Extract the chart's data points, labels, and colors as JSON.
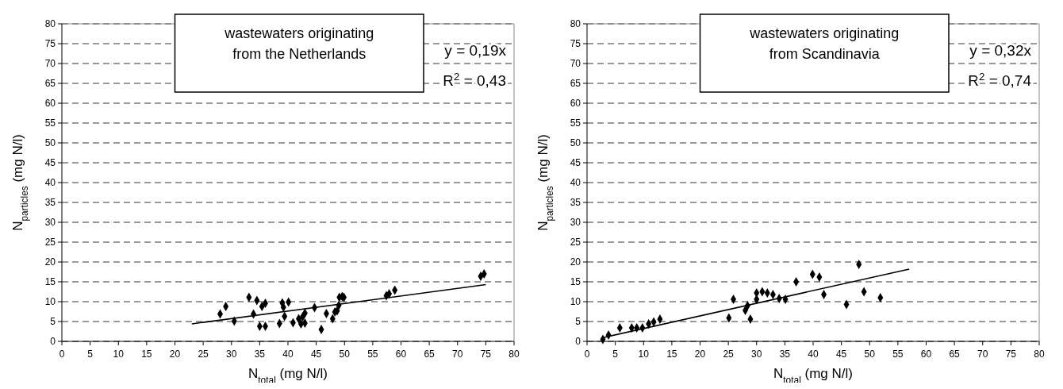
{
  "chart_data": [
    {
      "type": "scatter",
      "title": "wastewaters originating from the Netherlands",
      "xlabel": "N$_{total}$ (mg N/l)",
      "ylabel": "N$_{particles}$ (mg N/l)",
      "annotations": [
        "y = 0,19x",
        "R$^{2}$ = 0,43"
      ],
      "xlim": [
        0,
        80
      ],
      "ylim": [
        0,
        80
      ],
      "xticks": [
        0,
        5,
        10,
        15,
        20,
        25,
        30,
        35,
        40,
        45,
        50,
        55,
        60,
        65,
        70,
        75,
        80
      ],
      "yticks": [
        0,
        5,
        10,
        15,
        20,
        25,
        30,
        35,
        40,
        45,
        50,
        55,
        60,
        65,
        70,
        75,
        80
      ],
      "grid": "y",
      "marker": "diamond",
      "series": [
        {
          "color": "#000000",
          "x": [
            28.0,
            29.0,
            30.5,
            33.1,
            33.9,
            34.5,
            35.0,
            35.4,
            36.0,
            36.0,
            38.5,
            39.0,
            39.2,
            39.4,
            40.1,
            40.9,
            41.9,
            42.3,
            42.6,
            43.0,
            43.0,
            44.7,
            45.9,
            46.8,
            47.9,
            48.3,
            48.7,
            49.0,
            49.1,
            49.6,
            49.9,
            57.4,
            57.9,
            58.9,
            74.1,
            74.7
          ],
          "values": [
            6.9,
            8.8,
            5.1,
            11.1,
            6.9,
            10.3,
            3.8,
            8.8,
            9.6,
            3.8,
            4.5,
            9.7,
            8.6,
            6.3,
            9.9,
            4.7,
            5.7,
            4.4,
            6.2,
            7.1,
            4.6,
            8.5,
            3.0,
            7.0,
            5.7,
            7.4,
            7.7,
            9.1,
            11.1,
            11.3,
            11.1,
            11.5,
            12.0,
            12.9,
            16.4,
            17.0
          ]
        },
        {
          "type": "line",
          "color": "#000000",
          "marker": "none",
          "x": [
            23,
            75
          ],
          "values": [
            4.4,
            14.3
          ]
        }
      ]
    },
    {
      "type": "scatter",
      "title": "wastewaters originating from Scandinavia",
      "xlabel": "N$_{total}$ (mg N/l)",
      "ylabel": "N$_{particles}$ (mg N/l)",
      "annotations": [
        "y = 0,32x",
        "R$^{2}$ = 0,74"
      ],
      "xlim": [
        0,
        80
      ],
      "ylim": [
        0,
        80
      ],
      "xticks": [
        0,
        5,
        10,
        15,
        20,
        25,
        30,
        35,
        40,
        45,
        50,
        55,
        60,
        65,
        70,
        75,
        80
      ],
      "yticks": [
        0,
        5,
        10,
        15,
        20,
        25,
        30,
        35,
        40,
        45,
        50,
        55,
        60,
        65,
        70,
        75,
        80
      ],
      "grid": "y",
      "marker": "diamond",
      "series": [
        {
          "color": "#000000",
          "x": [
            2.8,
            3.8,
            5.8,
            7.9,
            8.8,
            9.8,
            10.9,
            11.8,
            12.9,
            25.1,
            25.9,
            28.0,
            28.4,
            28.9,
            30.0,
            30.0,
            31.0,
            31.9,
            32.9,
            34.0,
            35.1,
            37.0,
            39.9,
            41.1,
            41.9,
            45.9,
            48.1,
            49.0,
            51.9
          ],
          "values": [
            0.5,
            1.6,
            3.4,
            3.4,
            3.4,
            3.4,
            4.4,
            4.9,
            5.6,
            5.9,
            10.6,
            7.8,
            9.0,
            5.6,
            10.6,
            12.2,
            12.5,
            12.2,
            11.8,
            10.8,
            10.6,
            15.0,
            16.9,
            16.2,
            11.8,
            9.3,
            19.4,
            12.5,
            11.0
          ]
        },
        {
          "type": "line",
          "color": "#000000",
          "marker": "none",
          "x": [
            3,
            57
          ],
          "values": [
            1.0,
            18.2
          ]
        }
      ]
    }
  ]
}
